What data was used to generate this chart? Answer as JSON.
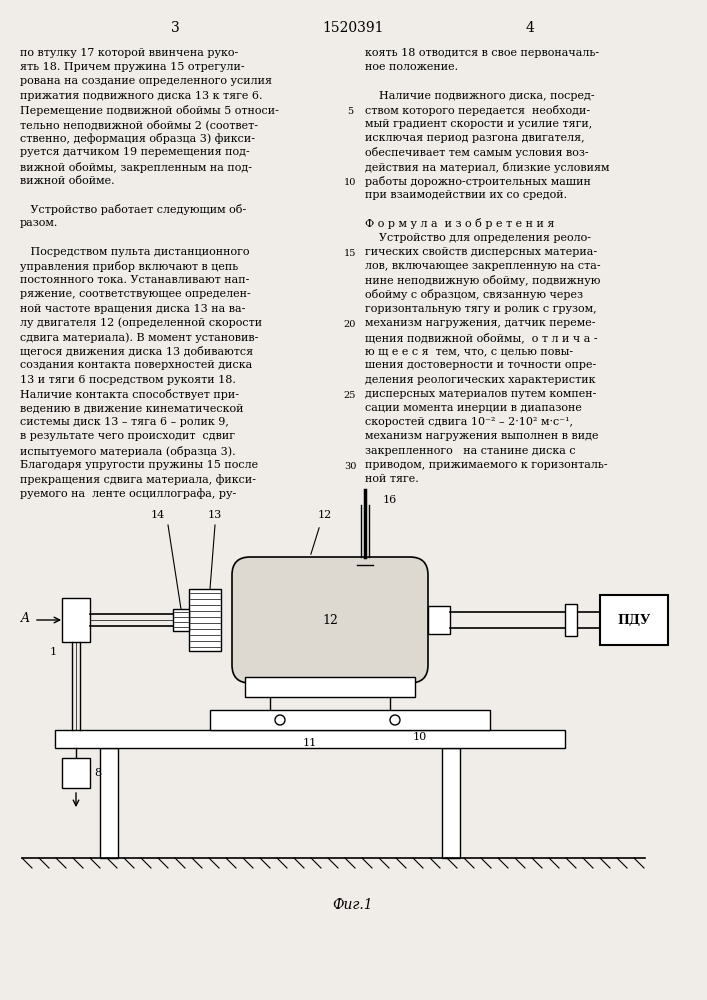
{
  "page_number_left": "3",
  "patent_number": "1520391",
  "page_number_right": "4",
  "left_column_lines": [
    "по втулку 17 которой ввинчена руко-",
    "ять 18. Причем пружина 15 отрегули-",
    "рована на создание определенного усилия",
    "прижатия подвижного диска 13 к тяге 6.",
    "Перемещение подвижной обоймы 5 относи-",
    "тельно неподвижной обоймы 2 (соответ-",
    "ственно, деформация образца 3) фикси-",
    "руется датчиком 19 перемещения под-",
    "вижной обоймы, закрепленным на под-",
    "вижной обойме.",
    "",
    "   Устройство работает следующим об-",
    "разом.",
    "",
    "   Посредством пульта дистанционного",
    "управления прибор включают в цепь",
    "постоянного тока. Устанавливают нап-",
    "ряжение, соответствующее определен-",
    "ной частоте вращения диска 13 на ва-",
    "лу двигателя 12 (определенной скорости",
    "сдвига материала). В момент установив-",
    "щегося движения диска 13 добиваются",
    "создания контакта поверхностей диска",
    "13 и тяги 6 посредством рукояти 18.",
    "Наличие контакта способствует при-",
    "ведению в движение кинематической",
    "системы диск 13 – тяга 6 – ролик 9,",
    "в результате чего происходит  сдвиг",
    "испытуемого материала (образца 3).",
    "Благодаря упругости пружины 15 после",
    "прекращения сдвига материала, фикси-",
    "руемого на  ленте осциллографа, ру-"
  ],
  "right_column_lines": [
    "коять 18 отводится в свое первоначаль-",
    "ное положение.",
    "",
    "    Наличие подвижного диска, посред-",
    "ством которого передается  необходи-",
    "мый градиент скорости и усилие тяги,",
    "исключая период разгона двигателя,",
    "обеспечивает тем самым условия воз-",
    "действия на материал, близкие условиям",
    "работы дорожно-строительных машин",
    "при взаимодействии их со средой.",
    "",
    "Ф о р м у л а  и з о б р е т е н и я",
    "    Устройство для определения реоло-",
    "гических свойств дисперсных материа-",
    "лов, включающее закрепленную на ста-",
    "нине неподвижную обойму, подвижную",
    "обойму с образцом, связанную через",
    "горизонтальную тягу и ролик с грузом,",
    "механизм нагружения, датчик переме-",
    "щения подвижной обоймы,  о т л и ч а -",
    "ю щ е е с я  тем, что, с целью повы-",
    "шения достоверности и точности опре-",
    "деления реологических характеристик",
    "дисперсных материалов путем компен-",
    "сации момента инерции в диапазоне",
    "скоростей сдвига 10⁻² – 2·10² м·с⁻¹,",
    "механизм нагружения выполнен в виде",
    "закрепленного   на станине диска с",
    "приводом, прижимаемого к горизонталь-",
    "ной тяге."
  ],
  "line_numbers": [
    5,
    10,
    15,
    20,
    25,
    30
  ],
  "fig_caption": "Фиг.1",
  "bg_color": "#f0ede8"
}
